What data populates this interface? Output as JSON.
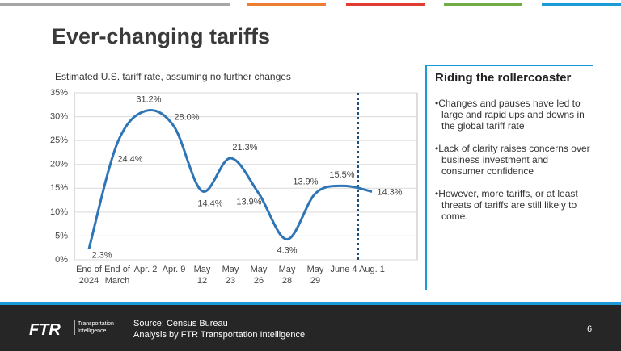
{
  "slide_title": "Ever-changing tariffs",
  "chart_data": {
    "type": "line",
    "title": "Estimated U.S. tariff rate, assuming no further changes",
    "categories": [
      "End of\n2024",
      "End of\nMarch",
      "Apr. 2",
      "Apr. 9",
      "May\n12",
      "May\n23",
      "May\n26",
      "May\n28",
      "May\n29",
      "June 4",
      "Aug. 1"
    ],
    "values": [
      2.3,
      24.4,
      31.2,
      28.0,
      14.4,
      21.3,
      13.9,
      4.3,
      13.9,
      15.5,
      14.3
    ],
    "value_labels": [
      "2.3%",
      "24.4%",
      "31.2%",
      "28.0%",
      "14.4%",
      "21.3%",
      "13.9%",
      "4.3%",
      "13.9%",
      "15.5%",
      "14.3%"
    ],
    "color": "#2e75b6",
    "ylim": [
      0,
      35
    ],
    "yticks": [
      {
        "value": 0,
        "label": "0%"
      },
      {
        "value": 5,
        "label": "5%"
      },
      {
        "value": 10,
        "label": "10%"
      },
      {
        "value": 15,
        "label": "15%"
      },
      {
        "value": 20,
        "label": "20%"
      },
      {
        "value": 25,
        "label": "25%"
      },
      {
        "value": 30,
        "label": "30%"
      },
      {
        "value": 35,
        "label": "35%"
      }
    ],
    "grid": true
  },
  "panel": {
    "heading": "Riding the rollercoaster",
    "bullets": [
      "Changes and pauses have led to large and rapid ups and downs in the global tariff rate",
      "Lack of clarity raises concerns over business investment and consumer confidence",
      "However, more tariffs, or at least threats of tariffs are still likely to come."
    ]
  },
  "footer": {
    "logo": "FTR",
    "tagline": "Transportation Intelligence.",
    "source": [
      "Source: Census Bureau",
      "Analysis by FTR Transportation Intelligence"
    ],
    "page": "6"
  }
}
